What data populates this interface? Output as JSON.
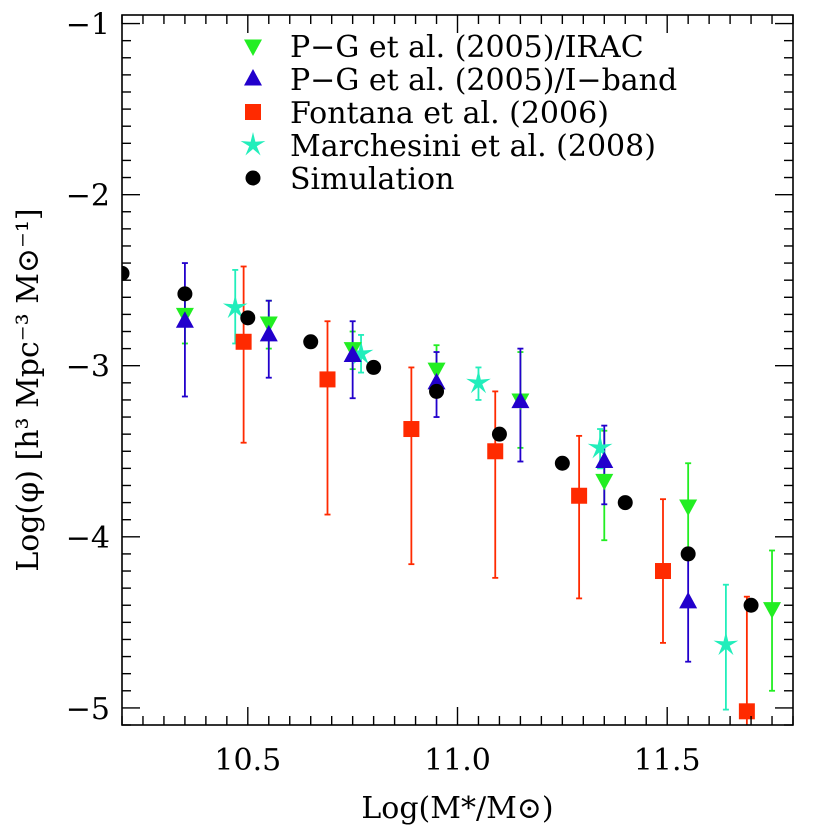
{
  "chart_data": {
    "type": "scatter",
    "xlabel": "Log(M*/M⊙)",
    "ylabel": "Log(φ) [h³ Mpc⁻³ M⊙⁻¹]",
    "xlim": [
      10.2,
      11.8
    ],
    "ylim": [
      -5.1,
      -0.95
    ],
    "x_ticks": [
      10.5,
      11.0,
      11.5
    ],
    "x_tick_labels": [
      "10.5",
      "11.0",
      "11.5"
    ],
    "y_ticks": [
      -1,
      -2,
      -3,
      -4,
      -5
    ],
    "y_tick_labels": [
      "−1",
      "−2",
      "−3",
      "−4",
      "−5"
    ],
    "grid": false,
    "legend_position": "top-right",
    "series": [
      {
        "name": "P−G et al. (2005)/IRAC",
        "marker": "triangle-down",
        "color": "#22ee22",
        "points": [
          {
            "x": 10.35,
            "y": -2.7,
            "lo": -2.87,
            "hi": -2.55
          },
          {
            "x": 10.55,
            "y": -2.75,
            "lo": -2.9,
            "hi": -2.62
          },
          {
            "x": 10.75,
            "y": -2.9,
            "lo": -3.02,
            "hi": -2.8
          },
          {
            "x": 10.95,
            "y": -3.02,
            "lo": -3.15,
            "hi": -2.88
          },
          {
            "x": 11.15,
            "y": -3.2,
            "lo": -3.48,
            "hi": -2.92
          },
          {
            "x": 11.35,
            "y": -3.67,
            "lo": -4.02,
            "hi": -3.38
          },
          {
            "x": 11.55,
            "y": -3.82,
            "lo": -4.08,
            "hi": -3.57
          },
          {
            "x": 11.75,
            "y": -4.42,
            "lo": -4.9,
            "hi": -4.08
          }
        ]
      },
      {
        "name": "P−G et al. (2005)/I−band",
        "marker": "triangle-up",
        "color": "#2200cc",
        "points": [
          {
            "x": 10.35,
            "y": -2.74,
            "lo": -3.18,
            "hi": -2.4
          },
          {
            "x": 10.55,
            "y": -2.82,
            "lo": -3.07,
            "hi": -2.62
          },
          {
            "x": 10.75,
            "y": -2.94,
            "lo": -3.19,
            "hi": -2.74
          },
          {
            "x": 10.95,
            "y": -3.1,
            "lo": -3.3,
            "hi": -2.92
          },
          {
            "x": 11.15,
            "y": -3.21,
            "lo": -3.56,
            "hi": -2.9
          },
          {
            "x": 11.35,
            "y": -3.56,
            "lo": -3.81,
            "hi": -3.35
          },
          {
            "x": 11.55,
            "y": -4.38,
            "lo": -4.73,
            "hi": -4.1
          }
        ]
      },
      {
        "name": "Fontana et al. (2006)",
        "marker": "square",
        "color": "#ff2a00",
        "points": [
          {
            "x": 10.49,
            "y": -2.86,
            "lo": -3.45,
            "hi": -2.42
          },
          {
            "x": 10.69,
            "y": -3.08,
            "lo": -3.87,
            "hi": -2.74
          },
          {
            "x": 10.89,
            "y": -3.37,
            "lo": -4.16,
            "hi": -3.01
          },
          {
            "x": 11.09,
            "y": -3.5,
            "lo": -4.24,
            "hi": -3.15
          },
          {
            "x": 11.29,
            "y": -3.76,
            "lo": -4.36,
            "hi": -3.41
          },
          {
            "x": 11.49,
            "y": -4.2,
            "lo": -4.62,
            "hi": -3.78
          },
          {
            "x": 11.69,
            "y": -5.02,
            "lo": -5.12,
            "hi": -4.35
          }
        ]
      },
      {
        "name": "Marchesini et al. (2008)",
        "marker": "star",
        "color": "#22eebb",
        "points": [
          {
            "x": 10.47,
            "y": -2.66,
            "lo": -2.87,
            "hi": -2.44
          },
          {
            "x": 10.77,
            "y": -2.93,
            "lo": -3.04,
            "hi": -2.82
          },
          {
            "x": 11.05,
            "y": -3.1,
            "lo": -3.2,
            "hi": -3.01
          },
          {
            "x": 11.34,
            "y": -3.48,
            "lo": -3.6,
            "hi": -3.37
          },
          {
            "x": 11.64,
            "y": -4.63,
            "lo": -5.01,
            "hi": -4.28
          }
        ]
      },
      {
        "name": "Simulation",
        "marker": "circle",
        "color": "#000000",
        "points": [
          {
            "x": 10.2,
            "y": -2.46
          },
          {
            "x": 10.35,
            "y": -2.58
          },
          {
            "x": 10.5,
            "y": -2.72
          },
          {
            "x": 10.65,
            "y": -2.86
          },
          {
            "x": 10.8,
            "y": -3.01
          },
          {
            "x": 10.95,
            "y": -3.15
          },
          {
            "x": 11.1,
            "y": -3.4
          },
          {
            "x": 11.25,
            "y": -3.57
          },
          {
            "x": 11.4,
            "y": -3.8
          },
          {
            "x": 11.55,
            "y": -4.1
          },
          {
            "x": 11.7,
            "y": -4.4
          }
        ]
      }
    ]
  }
}
